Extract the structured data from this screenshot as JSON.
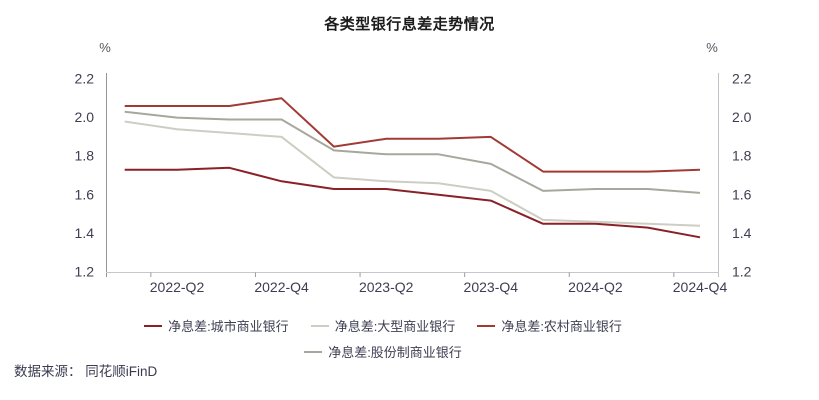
{
  "units": {
    "left": "%",
    "right": "%"
  },
  "source": "数据来源： 同花顺iFinD",
  "chart_data": {
    "type": "line",
    "title": "各类型银行息差走势情况",
    "x": [
      "2022-Q1",
      "2022-Q2",
      "2022-Q3",
      "2022-Q4",
      "2023-Q1",
      "2023-Q2",
      "2023-Q3",
      "2023-Q4",
      "2024-Q1",
      "2024-Q2",
      "2024-Q3",
      "2024-Q4"
    ],
    "visible_x_tick_labels": [
      "2022-Q2",
      "2022-Q4",
      "2023-Q2",
      "2023-Q4",
      "2024-Q2",
      "2024-Q4"
    ],
    "series": [
      {
        "key": "city-commercial",
        "name": "净息差:城市商业银行",
        "color": "#8a2127",
        "values": [
          1.73,
          1.73,
          1.74,
          1.67,
          1.63,
          1.63,
          1.6,
          1.57,
          1.45,
          1.45,
          1.43,
          1.38
        ]
      },
      {
        "key": "large-commercial",
        "name": "净息差:大型商业银行",
        "color": "#cdcdc3",
        "values": [
          1.98,
          1.94,
          1.92,
          1.9,
          1.69,
          1.67,
          1.66,
          1.62,
          1.47,
          1.46,
          1.45,
          1.44
        ]
      },
      {
        "key": "rural-commercial",
        "name": "净息差:农村商业银行",
        "color": "#a23a34",
        "values": [
          2.06,
          2.06,
          2.06,
          2.1,
          1.85,
          1.89,
          1.89,
          1.9,
          1.72,
          1.72,
          1.72,
          1.73
        ]
      },
      {
        "key": "joint-stock-commercial",
        "name": "净息差:股份制商业银行",
        "color": "#a7a79d",
        "values": [
          2.03,
          2.0,
          1.99,
          1.99,
          1.83,
          1.81,
          1.81,
          1.76,
          1.62,
          1.63,
          1.63,
          1.61
        ]
      }
    ],
    "ylim": [
      1.2,
      2.2
    ],
    "yticks": [
      1.2,
      1.4,
      1.6,
      1.8,
      2.0,
      2.2
    ],
    "y_unit": "%",
    "grid": false,
    "legend_position": "bottom"
  }
}
